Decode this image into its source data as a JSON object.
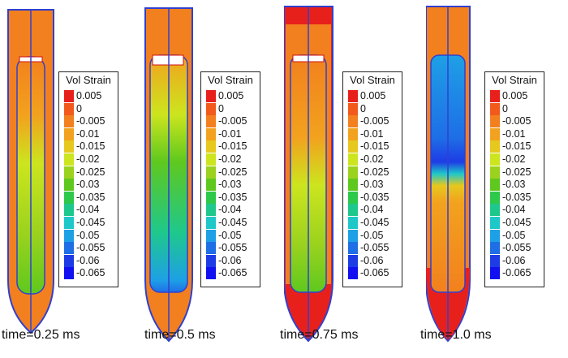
{
  "legend_title": "Vol Strain",
  "legend_ticks": [
    "0.005",
    "0",
    "-0.005",
    "-0.01",
    "-0.015",
    "-0.02",
    "-0.025",
    "-0.03",
    "-0.035",
    "-0.04",
    "-0.045",
    "-0.05",
    "-0.055",
    "-0.06",
    "-0.065"
  ],
  "legend_colors": [
    "#e8201c",
    "#f25a1c",
    "#f2801e",
    "#f2a21e",
    "#e6c81e",
    "#cce51e",
    "#9ad21e",
    "#5fc81e",
    "#2ec84a",
    "#1ec88c",
    "#1ec8c8",
    "#1ea0e6",
    "#1e6ee6",
    "#1e3ce6",
    "#1010f0"
  ],
  "panels": [
    {
      "caption": "time=0.25 ms"
    },
    {
      "caption": "time=0.5 ms"
    },
    {
      "caption": "time=0.75 ms"
    },
    {
      "caption": "time=1.0 ms"
    }
  ]
}
